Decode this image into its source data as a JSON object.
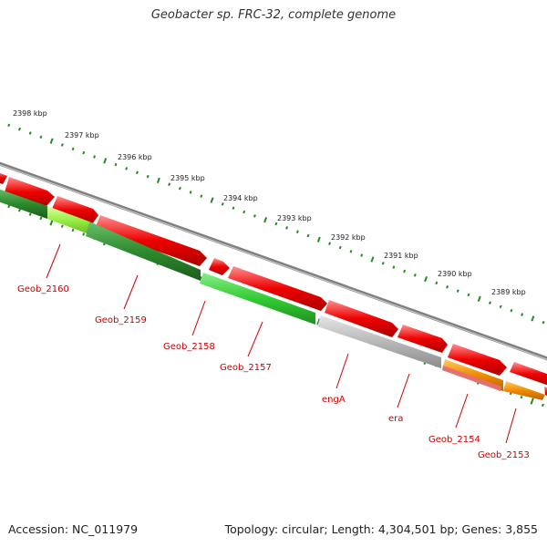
{
  "title": "Geobacter sp. FRC-32, complete genome",
  "footer": {
    "accession": "Accession: NC_011979",
    "topology": "Topology: circular; Length: 4,304,501 bp; Genes: 3,855"
  },
  "colors": {
    "backbone": "#808080",
    "forward_cds": "#ee0000",
    "reverse_dark": "#2e8b2e",
    "reverse_mid": "#33cc33",
    "reverse_light": "#99ee44",
    "gray_gene": "#b8b8b8",
    "orange_gene": "#f08a00",
    "tick": "#228b22",
    "label": "#cc0000"
  },
  "scale": {
    "unit": "kbp",
    "labels": [
      "2398 kbp",
      "2397 kbp",
      "2396 kbp",
      "2395 kbp",
      "2394 kbp",
      "2393 kbp",
      "2392 kbp",
      "2391 kbp",
      "2390 kbp",
      "2389 kbp"
    ]
  },
  "genes": [
    "Geob_2160",
    "Geob_2159",
    "Geob_2158",
    "Geob_2157",
    "engA",
    "era",
    "Geob_2154",
    "Geob_2153"
  ]
}
